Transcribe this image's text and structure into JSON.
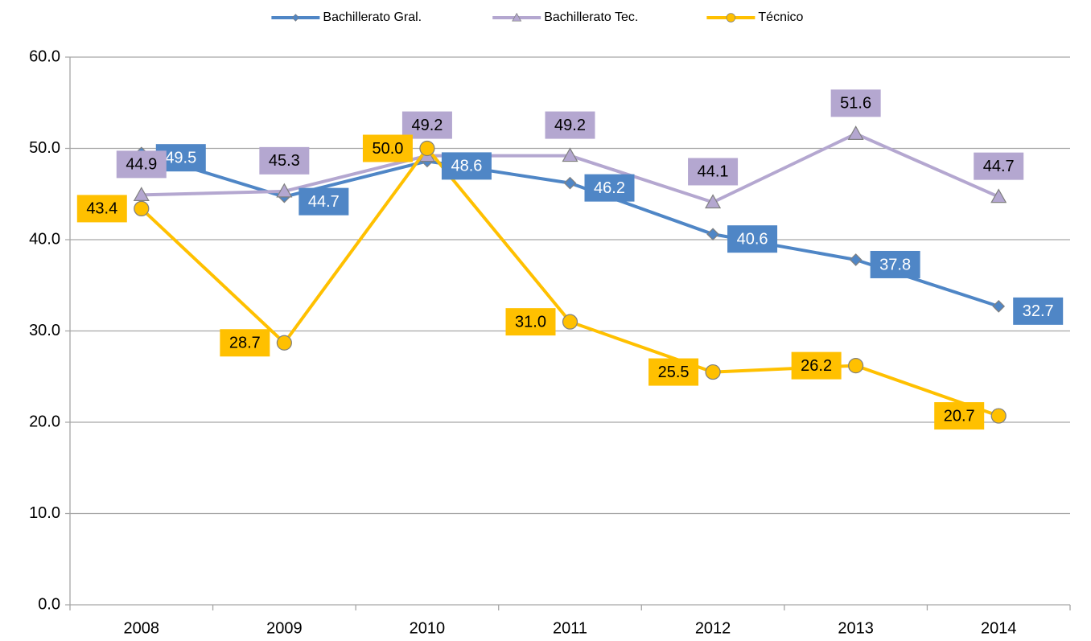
{
  "chart_data": {
    "type": "line",
    "categories": [
      "2008",
      "2009",
      "2010",
      "2011",
      "2012",
      "2013",
      "2014"
    ],
    "series": [
      {
        "name": "Bachillerato Gral.",
        "color": "#4f86c6",
        "marker": "diamond",
        "label_side": "right",
        "values": [
          49.5,
          44.7,
          48.6,
          46.2,
          40.6,
          37.8,
          32.7
        ],
        "value_labels": [
          "49.5",
          "44.7",
          "48.6",
          "46.2",
          "40.6",
          "37.8",
          "32.7"
        ]
      },
      {
        "name": "Bachillerato Tec.",
        "color": "#b4a7d0",
        "marker": "triangle",
        "label_side": "top",
        "values": [
          44.9,
          45.3,
          49.2,
          49.2,
          44.1,
          51.6,
          44.7
        ],
        "value_labels": [
          "44.9",
          "45.3",
          "49.2",
          "49.2",
          "44.1",
          "51.6",
          "44.7"
        ]
      },
      {
        "name": "Técnico",
        "color": "#ffc000",
        "marker": "circle",
        "label_side": "left",
        "values": [
          43.4,
          28.7,
          50.0,
          31.0,
          25.5,
          26.2,
          20.7
        ],
        "value_labels": [
          "43.4",
          "28.7",
          "50.0",
          "31.0",
          "25.5",
          "26.2",
          "20.7"
        ]
      }
    ],
    "ylim": [
      0,
      60
    ],
    "yticks": [
      {
        "value": 0,
        "label": "0.0"
      },
      {
        "value": 10,
        "label": "10.0"
      },
      {
        "value": 20,
        "label": "20.0"
      },
      {
        "value": 30,
        "label": "30.0"
      },
      {
        "value": 40,
        "label": "40.0"
      },
      {
        "value": 50,
        "label": "50.0"
      },
      {
        "value": 60,
        "label": "60.0"
      }
    ],
    "grid": true,
    "legend": "top"
  }
}
